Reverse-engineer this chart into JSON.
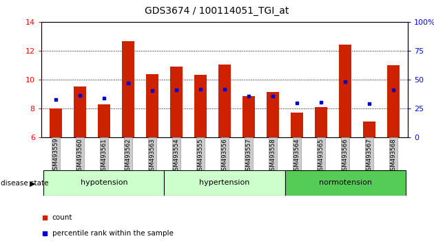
{
  "title": "GDS3674 / 100114051_TGI_at",
  "samples": [
    "GSM493559",
    "GSM493560",
    "GSM493561",
    "GSM493562",
    "GSM493563",
    "GSM493554",
    "GSM493555",
    "GSM493556",
    "GSM493557",
    "GSM493558",
    "GSM493564",
    "GSM493565",
    "GSM493566",
    "GSM493567",
    "GSM493568"
  ],
  "bar_values": [
    8.0,
    9.5,
    8.3,
    12.65,
    10.4,
    10.9,
    10.35,
    11.05,
    8.85,
    9.15,
    7.7,
    8.1,
    12.4,
    7.1,
    11.0
  ],
  "percentile_values": [
    8.6,
    8.9,
    8.7,
    9.75,
    9.25,
    9.3,
    9.35,
    9.35,
    8.85,
    8.85,
    8.4,
    8.45,
    9.85,
    8.35,
    9.3
  ],
  "ylim_left": [
    6,
    14
  ],
  "ylim_right": [
    0,
    100
  ],
  "yticks_left": [
    6,
    8,
    10,
    12,
    14
  ],
  "yticks_right": [
    0,
    25,
    50,
    75,
    100
  ],
  "bar_color": "#cc2200",
  "marker_color": "#0000cc",
  "bar_width": 0.5,
  "disease_label": "disease state",
  "legend_count": "count",
  "legend_percentile": "percentile rank within the sample",
  "group_info": [
    {
      "name": "hypotension",
      "start": 0,
      "end": 4,
      "color": "#ccffcc"
    },
    {
      "name": "hypertension",
      "start": 5,
      "end": 9,
      "color": "#ccffcc"
    },
    {
      "name": "normotension",
      "start": 10,
      "end": 14,
      "color": "#55cc55"
    }
  ]
}
